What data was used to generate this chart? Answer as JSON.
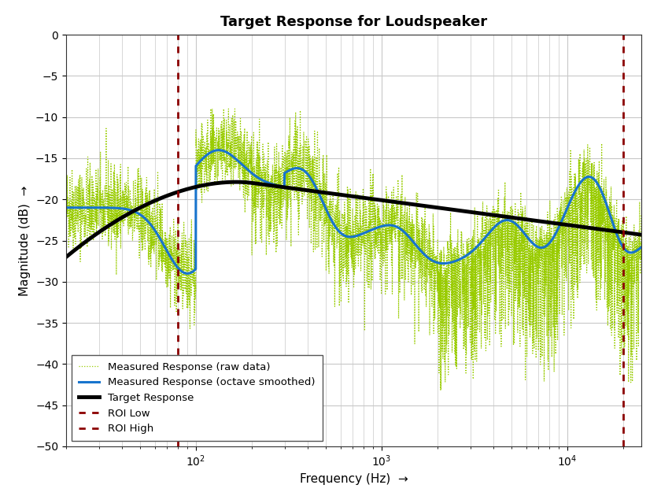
{
  "title": "Target Response for Loudspeaker",
  "xlabel": "Frequency (Hz)  →",
  "ylabel": "Magnitude (dB)  →",
  "xlim": [
    20,
    25000
  ],
  "ylim": [
    -50,
    0
  ],
  "roi_low": 80,
  "roi_high": 20000,
  "raw_color": "#99cc00",
  "smoothed_color": "#1874cd",
  "target_color": "#000000",
  "roi_color": "#8b0000",
  "background_color": "#ffffff",
  "grid_color": "#c8c8c8",
  "legend_loc": "lower left",
  "title_fontsize": 13,
  "label_fontsize": 11,
  "tick_fontsize": 10
}
